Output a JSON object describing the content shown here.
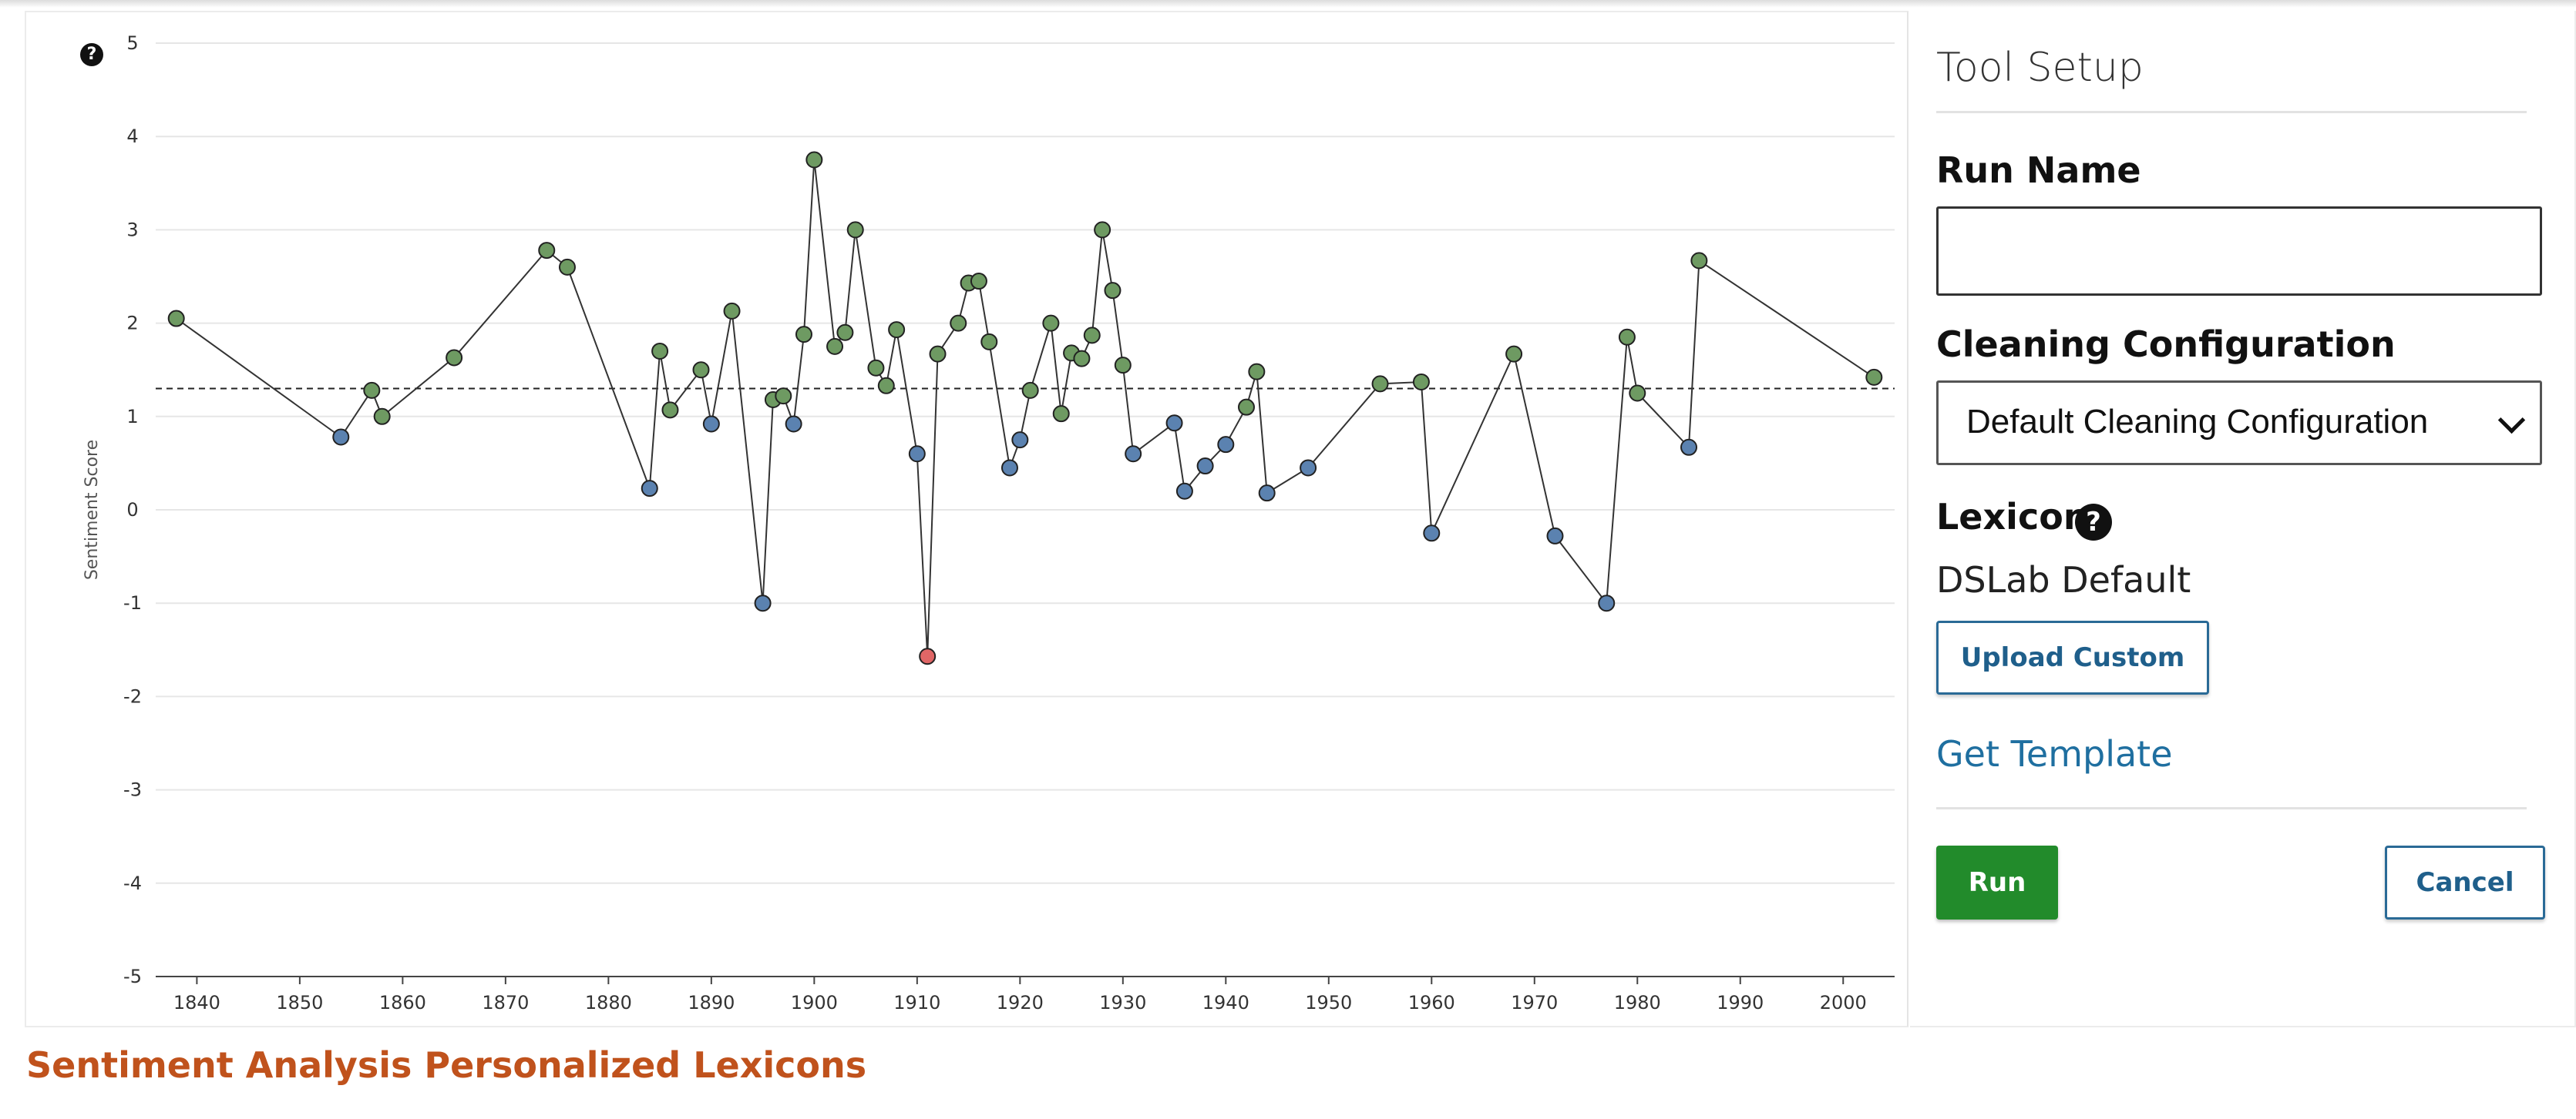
{
  "chart_data": {
    "type": "scatter",
    "ylabel": "Sentiment Score",
    "xlabel": "",
    "ylim": [
      -5,
      5
    ],
    "xlim": [
      1836,
      2005
    ],
    "yticks": [
      "5",
      "4",
      "3",
      "2",
      "1",
      "0",
      "-1",
      "-2",
      "-3",
      "-4",
      "-5"
    ],
    "xticks": [
      "1840",
      "1850",
      "1860",
      "1870",
      "1880",
      "1890",
      "1900",
      "1910",
      "1920",
      "1930",
      "1940",
      "1950",
      "1960",
      "1970",
      "1980",
      "1990",
      "2000"
    ],
    "reference_line": 1.3,
    "points_connected": true,
    "colors": {
      "above": "#6e9a62",
      "below": "#5b82b0",
      "negative_extreme": "#e06666",
      "line": "#333333",
      "grid": "#e6e6e6"
    },
    "points": [
      {
        "x": 1838,
        "y": 2.05,
        "c": "above"
      },
      {
        "x": 1854,
        "y": 0.78,
        "c": "below"
      },
      {
        "x": 1857,
        "y": 1.28,
        "c": "above"
      },
      {
        "x": 1858,
        "y": 1.0,
        "c": "above"
      },
      {
        "x": 1865,
        "y": 1.63,
        "c": "above"
      },
      {
        "x": 1874,
        "y": 2.78,
        "c": "above"
      },
      {
        "x": 1876,
        "y": 2.6,
        "c": "above"
      },
      {
        "x": 1884,
        "y": 0.23,
        "c": "below"
      },
      {
        "x": 1885,
        "y": 1.7,
        "c": "above"
      },
      {
        "x": 1886,
        "y": 1.07,
        "c": "above"
      },
      {
        "x": 1889,
        "y": 1.5,
        "c": "above"
      },
      {
        "x": 1890,
        "y": 0.92,
        "c": "below"
      },
      {
        "x": 1892,
        "y": 2.13,
        "c": "above"
      },
      {
        "x": 1895,
        "y": -1.0,
        "c": "below"
      },
      {
        "x": 1896,
        "y": 1.18,
        "c": "above"
      },
      {
        "x": 1897,
        "y": 1.22,
        "c": "above"
      },
      {
        "x": 1898,
        "y": 0.92,
        "c": "below"
      },
      {
        "x": 1899,
        "y": 1.88,
        "c": "above"
      },
      {
        "x": 1900,
        "y": 3.75,
        "c": "above"
      },
      {
        "x": 1902,
        "y": 1.75,
        "c": "above"
      },
      {
        "x": 1903,
        "y": 1.9,
        "c": "above"
      },
      {
        "x": 1904,
        "y": 3.0,
        "c": "above"
      },
      {
        "x": 1906,
        "y": 1.52,
        "c": "above"
      },
      {
        "x": 1907,
        "y": 1.33,
        "c": "above"
      },
      {
        "x": 1908,
        "y": 1.93,
        "c": "above"
      },
      {
        "x": 1910,
        "y": 0.6,
        "c": "below"
      },
      {
        "x": 1911,
        "y": -1.57,
        "c": "negative_extreme"
      },
      {
        "x": 1912,
        "y": 1.67,
        "c": "above"
      },
      {
        "x": 1914,
        "y": 2.0,
        "c": "above"
      },
      {
        "x": 1915,
        "y": 2.43,
        "c": "above"
      },
      {
        "x": 1916,
        "y": 2.45,
        "c": "above"
      },
      {
        "x": 1917,
        "y": 1.8,
        "c": "above"
      },
      {
        "x": 1919,
        "y": 0.45,
        "c": "below"
      },
      {
        "x": 1920,
        "y": 0.75,
        "c": "below"
      },
      {
        "x": 1921,
        "y": 1.28,
        "c": "above"
      },
      {
        "x": 1923,
        "y": 2.0,
        "c": "above"
      },
      {
        "x": 1924,
        "y": 1.03,
        "c": "above"
      },
      {
        "x": 1925,
        "y": 1.68,
        "c": "above"
      },
      {
        "x": 1926,
        "y": 1.62,
        "c": "above"
      },
      {
        "x": 1927,
        "y": 1.87,
        "c": "above"
      },
      {
        "x": 1928,
        "y": 3.0,
        "c": "above"
      },
      {
        "x": 1929,
        "y": 2.35,
        "c": "above"
      },
      {
        "x": 1930,
        "y": 1.55,
        "c": "above"
      },
      {
        "x": 1931,
        "y": 0.6,
        "c": "below"
      },
      {
        "x": 1935,
        "y": 0.93,
        "c": "below"
      },
      {
        "x": 1936,
        "y": 0.2,
        "c": "below"
      },
      {
        "x": 1938,
        "y": 0.47,
        "c": "below"
      },
      {
        "x": 1940,
        "y": 0.7,
        "c": "below"
      },
      {
        "x": 1942,
        "y": 1.1,
        "c": "above"
      },
      {
        "x": 1943,
        "y": 1.48,
        "c": "above"
      },
      {
        "x": 1944,
        "y": 0.18,
        "c": "below"
      },
      {
        "x": 1948,
        "y": 0.45,
        "c": "below"
      },
      {
        "x": 1955,
        "y": 1.35,
        "c": "above"
      },
      {
        "x": 1959,
        "y": 1.37,
        "c": "above"
      },
      {
        "x": 1960,
        "y": -0.25,
        "c": "below"
      },
      {
        "x": 1968,
        "y": 1.67,
        "c": "above"
      },
      {
        "x": 1972,
        "y": -0.28,
        "c": "below"
      },
      {
        "x": 1977,
        "y": -1.0,
        "c": "below"
      },
      {
        "x": 1979,
        "y": 1.85,
        "c": "above"
      },
      {
        "x": 1980,
        "y": 1.25,
        "c": "above"
      },
      {
        "x": 1985,
        "y": 0.67,
        "c": "below"
      },
      {
        "x": 1986,
        "y": 2.67,
        "c": "above"
      },
      {
        "x": 2003,
        "y": 1.42,
        "c": "above"
      }
    ]
  },
  "setup": {
    "title": "Tool Setup",
    "run_name_label": "Run Name",
    "run_name_value": "",
    "cleaning_label": "Cleaning Configuration",
    "cleaning_selected": "Default Cleaning Configuration",
    "lexicon_label": "Lexicon",
    "lexicon_value": "DSLab Default",
    "upload_label": "Upload Custom",
    "template_label": "Get Template",
    "run_label": "Run",
    "cancel_label": "Cancel"
  },
  "icons": {
    "help": "?"
  },
  "caption": "Sentiment Analysis Personalized Lexicons"
}
